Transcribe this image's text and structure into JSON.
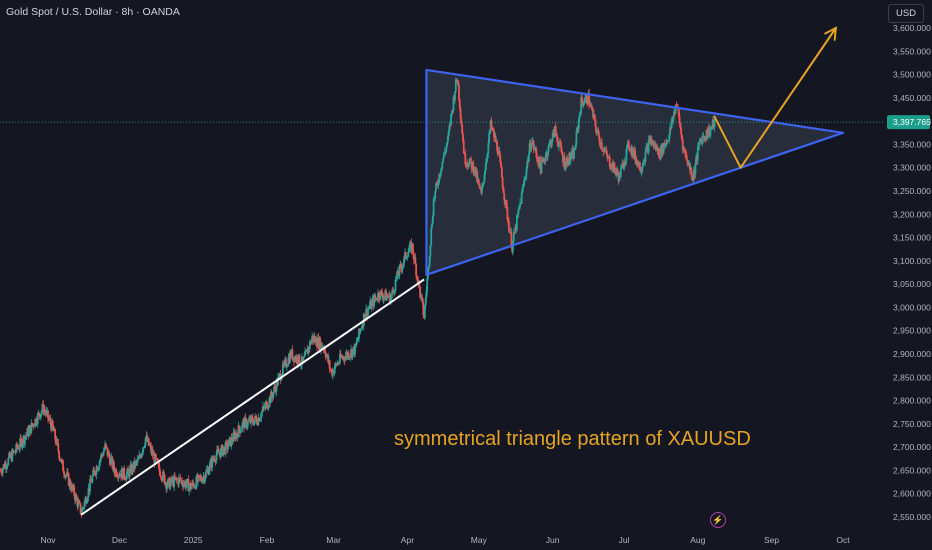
{
  "header": {
    "title": "Gold Spot / U.S. Dollar · 8h · OANDA"
  },
  "currency_button": "USD",
  "annotation": "symmetrical triangle pattern of XAUUSD",
  "icons": {
    "flash": "lightning-icon"
  },
  "colors": {
    "background": "#141722",
    "up": "#26a69a",
    "down": "#ef5350",
    "triangle": "#3d63f0",
    "projection": "#e6a223",
    "trendline": "#ffffff",
    "price_tag": "#1b9e8c"
  },
  "chart_data": {
    "type": "candlestick",
    "symbol": "XAUUSD",
    "interval": "8h",
    "ylim": [
      2525,
      3650
    ],
    "y_ticks": [
      {
        "value": 2550,
        "label": "2,550.000"
      },
      {
        "value": 2600,
        "label": "2,600.000"
      },
      {
        "value": 2650,
        "label": "2,650.000"
      },
      {
        "value": 2700,
        "label": "2,700.000"
      },
      {
        "value": 2750,
        "label": "2,750.000"
      },
      {
        "value": 2800,
        "label": "2,800.000"
      },
      {
        "value": 2850,
        "label": "2,850.000"
      },
      {
        "value": 2900,
        "label": "2,900.000"
      },
      {
        "value": 2950,
        "label": "2,950.000"
      },
      {
        "value": 3000,
        "label": "3,000.000"
      },
      {
        "value": 3050,
        "label": "3,050.000"
      },
      {
        "value": 3100,
        "label": "3,100.000"
      },
      {
        "value": 3150,
        "label": "3,150.000"
      },
      {
        "value": 3200,
        "label": "3,200.000"
      },
      {
        "value": 3250,
        "label": "3,250.000"
      },
      {
        "value": 3300,
        "label": "3,300.000"
      },
      {
        "value": 3350,
        "label": "3,350.000"
      },
      {
        "value": 3400,
        "label": "3,400.000"
      },
      {
        "value": 3450,
        "label": "3,450.000"
      },
      {
        "value": 3500,
        "label": "3,500.000"
      },
      {
        "value": 3550,
        "label": "3,550.000"
      },
      {
        "value": 3600,
        "label": "3,600.000"
      }
    ],
    "x_ticks": [
      {
        "date": "2024-11-01",
        "label": "Nov"
      },
      {
        "date": "2024-12-01",
        "label": "Dec"
      },
      {
        "date": "2025-01-01",
        "label": "2025"
      },
      {
        "date": "2025-02-01",
        "label": "Feb"
      },
      {
        "date": "2025-03-01",
        "label": "Mar"
      },
      {
        "date": "2025-04-01",
        "label": "Apr"
      },
      {
        "date": "2025-05-01",
        "label": "May"
      },
      {
        "date": "2025-06-01",
        "label": "Jun"
      },
      {
        "date": "2025-07-01",
        "label": "Jul"
      },
      {
        "date": "2025-08-01",
        "label": "Aug"
      },
      {
        "date": "2025-09-01",
        "label": "Sep"
      },
      {
        "date": "2025-10-01",
        "label": "Oct"
      }
    ],
    "last_price": {
      "value": 3397.765,
      "label": "3,397.765"
    },
    "price_path": [
      [
        "2024-10-12",
        2650
      ],
      [
        "2024-10-18",
        2690
      ],
      [
        "2024-10-24",
        2735
      ],
      [
        "2024-10-30",
        2785
      ],
      [
        "2024-11-03",
        2740
      ],
      [
        "2024-11-07",
        2660
      ],
      [
        "2024-11-12",
        2600
      ],
      [
        "2024-11-15",
        2560
      ],
      [
        "2024-11-20",
        2640
      ],
      [
        "2024-11-25",
        2700
      ],
      [
        "2024-11-29",
        2650
      ],
      [
        "2024-12-04",
        2640
      ],
      [
        "2024-12-09",
        2670
      ],
      [
        "2024-12-12",
        2720
      ],
      [
        "2024-12-17",
        2660
      ],
      [
        "2024-12-21",
        2620
      ],
      [
        "2024-12-26",
        2630
      ],
      [
        "2024-12-31",
        2615
      ],
      [
        "2025-01-06",
        2640
      ],
      [
        "2025-01-10",
        2680
      ],
      [
        "2025-01-15",
        2700
      ],
      [
        "2025-01-22",
        2750
      ],
      [
        "2025-01-28",
        2760
      ],
      [
        "2025-02-03",
        2810
      ],
      [
        "2025-02-07",
        2860
      ],
      [
        "2025-02-11",
        2900
      ],
      [
        "2025-02-16",
        2880
      ],
      [
        "2025-02-20",
        2935
      ],
      [
        "2025-02-25",
        2915
      ],
      [
        "2025-02-28",
        2860
      ],
      [
        "2025-03-04",
        2890
      ],
      [
        "2025-03-10",
        2910
      ],
      [
        "2025-03-14",
        2985
      ],
      [
        "2025-03-20",
        3030
      ],
      [
        "2025-03-25",
        3020
      ],
      [
        "2025-03-28",
        3070
      ],
      [
        "2025-04-01",
        3120
      ],
      [
        "2025-04-03",
        3130
      ],
      [
        "2025-04-06",
        3040
      ],
      [
        "2025-04-08",
        2980
      ],
      [
        "2025-04-10",
        3100
      ],
      [
        "2025-04-12",
        3230
      ],
      [
        "2025-04-15",
        3300
      ],
      [
        "2025-04-18",
        3360
      ],
      [
        "2025-04-21",
        3470
      ],
      [
        "2025-04-22",
        3495
      ],
      [
        "2025-04-25",
        3320
      ],
      [
        "2025-04-29",
        3300
      ],
      [
        "2025-05-02",
        3240
      ],
      [
        "2025-05-06",
        3390
      ],
      [
        "2025-05-09",
        3340
      ],
      [
        "2025-05-12",
        3230
      ],
      [
        "2025-05-15",
        3130
      ],
      [
        "2025-05-19",
        3240
      ],
      [
        "2025-05-23",
        3360
      ],
      [
        "2025-05-27",
        3300
      ],
      [
        "2025-06-02",
        3380
      ],
      [
        "2025-06-06",
        3310
      ],
      [
        "2025-06-10",
        3330
      ],
      [
        "2025-06-13",
        3440
      ],
      [
        "2025-06-16",
        3450
      ],
      [
        "2025-06-20",
        3370
      ],
      [
        "2025-06-24",
        3320
      ],
      [
        "2025-06-29",
        3280
      ],
      [
        "2025-07-03",
        3350
      ],
      [
        "2025-07-08",
        3300
      ],
      [
        "2025-07-12",
        3360
      ],
      [
        "2025-07-16",
        3330
      ],
      [
        "2025-07-20",
        3370
      ],
      [
        "2025-07-23",
        3440
      ],
      [
        "2025-07-26",
        3340
      ],
      [
        "2025-07-30",
        3280
      ],
      [
        "2025-08-02",
        3360
      ],
      [
        "2025-08-06",
        3380
      ],
      [
        "2025-08-08",
        3397
      ]
    ],
    "drawings": {
      "triangle": [
        [
          "2025-04-09",
          3510
        ],
        [
          "2025-10-01",
          3375
        ],
        [
          "2025-04-09",
          3070
        ]
      ],
      "support_trendline": [
        [
          "2024-11-15",
          2555
        ],
        [
          "2025-04-08",
          3060
        ]
      ],
      "projection_path": [
        [
          "2025-08-08",
          3410
        ],
        [
          "2025-08-19",
          3300
        ],
        [
          "2025-09-28",
          3600
        ]
      ]
    }
  }
}
